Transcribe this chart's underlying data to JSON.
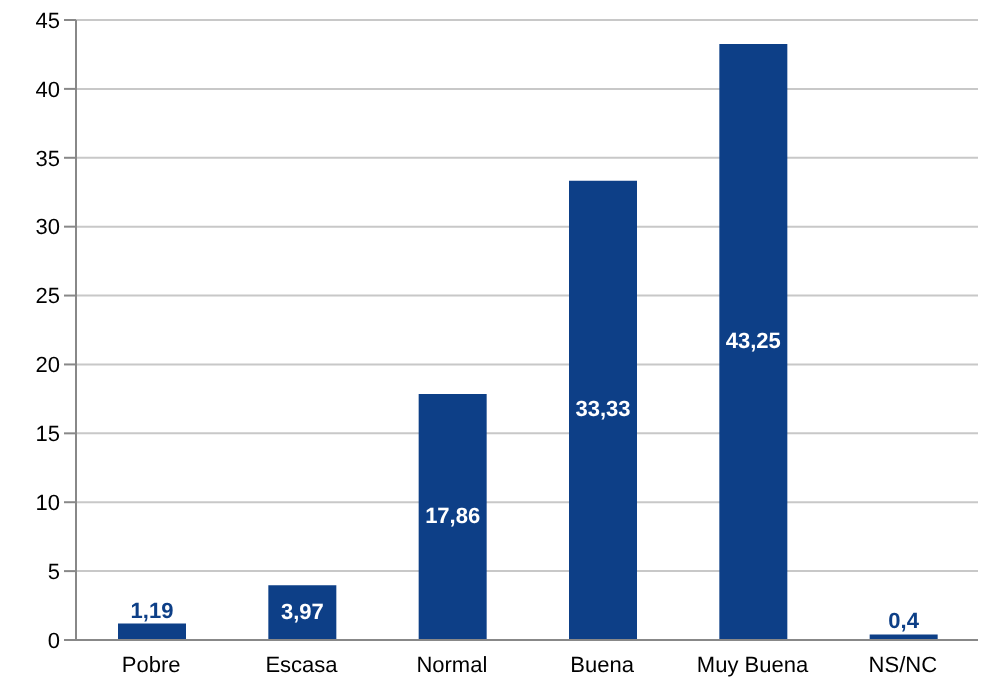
{
  "chart_data": {
    "type": "bar",
    "categories": [
      "Pobre",
      "Escasa",
      "Normal",
      "Buena",
      "Muy Buena",
      "NS/NC"
    ],
    "values": [
      1.19,
      3.97,
      17.86,
      33.33,
      43.25,
      0.4
    ],
    "value_labels": [
      "1,19",
      "3,97",
      "17,86",
      "33,33",
      "43,25",
      "0,4"
    ],
    "color": "#0d3f87",
    "ylim": [
      0,
      45
    ],
    "yticks": [
      0,
      5,
      10,
      15,
      20,
      25,
      30,
      35,
      40,
      45
    ],
    "grid": "y"
  }
}
